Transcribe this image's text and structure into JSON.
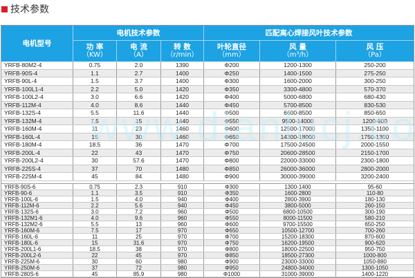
{
  "title": "技术参数",
  "colors": {
    "header_bg": "#1da2e3",
    "title_marker": "#d61f26",
    "row_alt": "#ececec"
  },
  "watermark": "www.dianlucj.com",
  "header": {
    "model": "电机型号",
    "motor_group": "电机技术参数",
    "fan_group": "匹配离心焊接风叶技术参数",
    "power": "功 率",
    "power_unit": "（KW）",
    "current": "电 流",
    "current_unit": "（A）",
    "speed": "转 数",
    "speed_unit": "（r/min）",
    "diameter": "叶轮直径",
    "diameter_unit": "（mm）",
    "airflow": "风 量",
    "airflow_unit": "（m³/h）",
    "pressure": "风 压",
    "pressure_unit": "（Pa）"
  },
  "group1": [
    [
      "YRFB-80M2-4",
      "0.75",
      "2.0",
      "1390",
      "Φ200",
      "1200-1300",
      "250-200"
    ],
    [
      "YRFB-90S-4",
      "1.1",
      "2.7",
      "1400",
      "Φ250",
      "1400-1500",
      "275-250"
    ],
    [
      "YRFB-90L-4",
      "1.5",
      "3.7",
      "1400",
      "Φ300",
      "1600-2000",
      "300-250"
    ],
    [
      "YRFB-100L1-4",
      "2.2",
      "5.0",
      "1420",
      "Φ350",
      "3300-4800",
      "570-370"
    ],
    [
      "YRFB-100L2-4",
      "3.0",
      "6.6",
      "1420",
      "Φ400",
      "5000-6800",
      "680-430"
    ],
    [
      "YRFB-112M-4",
      "4.0",
      "8.6",
      "1440",
      "Φ450",
      "5700-8500",
      "830-530"
    ],
    [
      "YRFB-132S-4",
      "5.5",
      "11.6",
      "1440",
      "Φ500",
      "6600-8500",
      "850-650"
    ],
    [
      "YRFB-132M-4",
      "7.5",
      "15",
      "1440",
      "Φ550",
      "9500-14000",
      "1200-900"
    ],
    [
      "YRFB-160M-4",
      "11",
      "23",
      "1460",
      "Φ600",
      "12500-17000",
      "1350-1100"
    ],
    [
      "YRFB-160L-4",
      "15",
      "30",
      "1460",
      "Φ650",
      "14300-18000",
      "1750-1300"
    ],
    [
      "YRFB-180M-4",
      "18.5",
      "36",
      "1470",
      "Φ700",
      "17500-24500",
      "2000-1550"
    ],
    [
      "YRFB-200L-4",
      "22",
      "43",
      "1470",
      "Φ750",
      "20600-28500",
      "2150-1700"
    ],
    [
      "YRFB-200L2-4",
      "30",
      "57.6",
      "1470",
      "Φ800",
      "22000-33000",
      "2300-1800"
    ],
    [
      "YRFB-225S-4",
      "37",
      "70",
      "1480",
      "Φ850",
      "26000-36000",
      "2800-2000"
    ],
    [
      "YRFB-225M-4",
      "45",
      "84",
      "1480",
      "Φ900",
      "30000-39000",
      "3200-2400"
    ]
  ],
  "group2": [
    [
      "YRFB-90S-6",
      "0.75",
      "2.3",
      "910",
      "Φ300",
      "1300-1400",
      "95-60"
    ],
    [
      "YRFB-90-6",
      "1.1",
      "3.5",
      "910",
      "Φ350",
      "1600-2800",
      "110-80"
    ],
    [
      "YRFB-100L-6",
      "1.5",
      "4.0",
      "940",
      "Φ400",
      "2800-3900",
      "180-130"
    ],
    [
      "YRFB-112M-6",
      "2.2",
      "5.6",
      "940",
      "Φ450",
      "3800-5000",
      "260-150"
    ],
    [
      "YRFB-132S-6",
      "3.0",
      "7.2",
      "960",
      "Φ500",
      "6800-10500",
      "300-190"
    ],
    [
      "YRFB-132M1-6",
      "4.0",
      "9.6",
      "960",
      "Φ550",
      "8000-11500",
      "580-210"
    ],
    [
      "YRFB-132M2-6",
      "5.5",
      "13",
      "960",
      "Φ600",
      "9700-15500",
      "650-250"
    ],
    [
      "YRFB-160M-6",
      "7.5",
      "17",
      "970",
      "Φ650",
      "10500-12700",
      "700-260"
    ],
    [
      "YRFB-160L-6",
      "11",
      "25",
      "970",
      "Φ700",
      "15200-18300",
      "870-600"
    ],
    [
      "YRFB-180L-6",
      "15",
      "31.6",
      "970",
      "Φ750",
      "16200-19500",
      "900-620"
    ],
    [
      "YRFB-200L1-6",
      "18.5",
      "38",
      "970",
      "Φ800",
      "18000-22500",
      "950-750"
    ],
    [
      "YRFB-200L2-6",
      "22",
      "45",
      "970",
      "Φ850",
      "18500-27300",
      "1000-800"
    ],
    [
      "YRFB-225M-6",
      "30",
      "60",
      "980",
      "Φ900",
      "23000-33000",
      "1050-880"
    ],
    [
      "YRFB-250M-6",
      "37",
      "72",
      "980",
      "Φ950",
      "24800-34000",
      "1300-1050"
    ],
    [
      "YRFB-280S-6",
      "45",
      "85.9",
      "980",
      "Φ1000",
      "31000-39000",
      "1400-1220"
    ]
  ]
}
